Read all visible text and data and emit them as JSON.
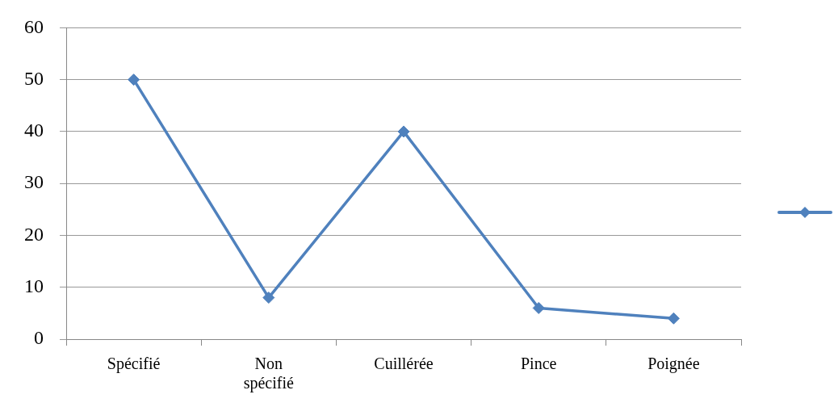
{
  "chart_data": {
    "type": "line",
    "categories": [
      "Spécifié",
      "Non spécifié",
      "Cuillérée",
      "Pince",
      "Poignée"
    ],
    "series": [
      {
        "color": "#4f81bd",
        "values": [
          50,
          8,
          40,
          6,
          4
        ]
      }
    ],
    "ylim": [
      0,
      60
    ],
    "yticks": [
      0,
      10,
      20,
      30,
      40,
      50,
      60
    ],
    "grid": "y",
    "marker": "diamond",
    "line_style": "solid"
  }
}
